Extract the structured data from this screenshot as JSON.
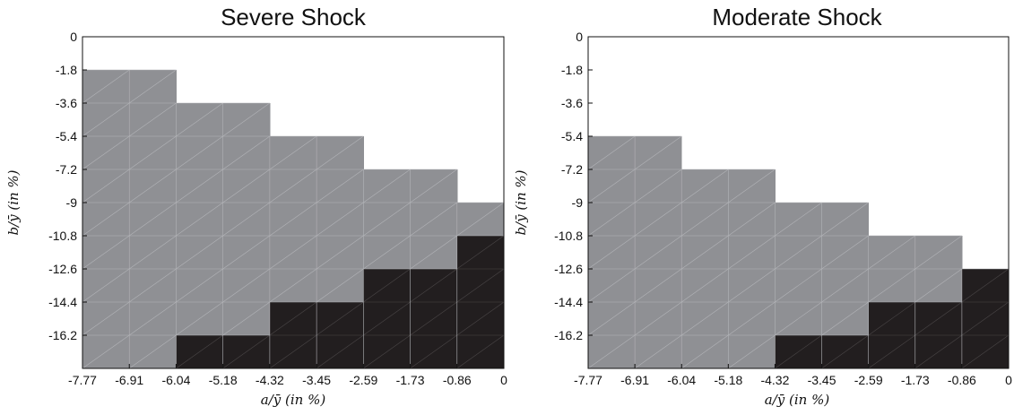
{
  "chart_data": [
    {
      "type": "heatmap",
      "title": "Severe Shock",
      "xlabel": "a/ȳ (in %)",
      "ylabel": "b/ȳ (in %)",
      "x_ticks": [
        "-7.77",
        "-6.91",
        "-6.04",
        "-5.18",
        "-4.32",
        "-3.45",
        "-2.59",
        "-1.73",
        "-0.86",
        "0"
      ],
      "y_ticks": [
        "0",
        "-1.8",
        "-3.6",
        "-5.4",
        "-7.2",
        "-9",
        "-10.8",
        "-12.6",
        "-14.4",
        "-16.2"
      ],
      "xlim": [
        -7.77,
        0
      ],
      "ylim": [
        -18,
        0
      ],
      "columns": [
        {
          "x": -7.77,
          "gray_from": -1.8,
          "black_from": null
        },
        {
          "x": -6.91,
          "gray_from": -1.8,
          "black_from": null
        },
        {
          "x": -6.04,
          "gray_from": -3.6,
          "black_from": -16.2
        },
        {
          "x": -5.18,
          "gray_from": -3.6,
          "black_from": -16.2
        },
        {
          "x": -4.32,
          "gray_from": -5.4,
          "black_from": -14.4
        },
        {
          "x": -3.45,
          "gray_from": -5.4,
          "black_from": -14.4
        },
        {
          "x": -2.59,
          "gray_from": -7.2,
          "black_from": -12.6
        },
        {
          "x": -1.73,
          "gray_from": -7.2,
          "black_from": -12.6
        },
        {
          "x": -0.86,
          "gray_from": -9,
          "black_from": -10.8
        }
      ]
    },
    {
      "type": "heatmap",
      "title": "Moderate Shock",
      "xlabel": "a/ȳ (in %)",
      "ylabel": "b/ȳ (in %)",
      "x_ticks": [
        "-7.77",
        "-6.91",
        "-6.04",
        "-5.18",
        "-4.32",
        "-3.45",
        "-2.59",
        "-1.73",
        "-0.86",
        "0"
      ],
      "y_ticks": [
        "0",
        "-1.8",
        "-3.6",
        "-5.4",
        "-7.2",
        "-9",
        "-10.8",
        "-12.6",
        "-14.4",
        "-16.2"
      ],
      "xlim": [
        -7.77,
        0
      ],
      "ylim": [
        -18,
        0
      ],
      "columns": [
        {
          "x": -7.77,
          "gray_from": -5.4,
          "black_from": null
        },
        {
          "x": -6.91,
          "gray_from": -5.4,
          "black_from": null
        },
        {
          "x": -6.04,
          "gray_from": -7.2,
          "black_from": null
        },
        {
          "x": -5.18,
          "gray_from": -7.2,
          "black_from": null
        },
        {
          "x": -4.32,
          "gray_from": -9,
          "black_from": -16.2
        },
        {
          "x": -3.45,
          "gray_from": -9,
          "black_from": -16.2
        },
        {
          "x": -2.59,
          "gray_from": -10.8,
          "black_from": -14.4
        },
        {
          "x": -1.73,
          "gray_from": -10.8,
          "black_from": -14.4
        },
        {
          "x": -0.86,
          "gray_from": -12.6,
          "black_from": -12.6
        }
      ]
    }
  ],
  "colors": {
    "empty": "#ffffff",
    "gray_region": "#8f9094",
    "black_region": "#221e1f",
    "hatch_on_gray": "#b3b4b8",
    "hatch_on_black": "#4a4647"
  }
}
